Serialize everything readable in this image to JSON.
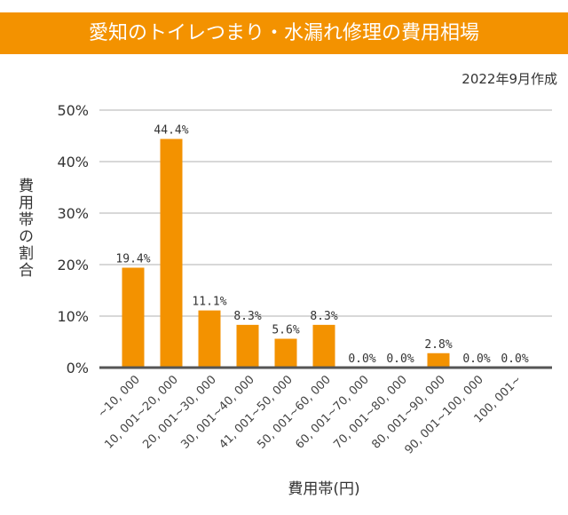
{
  "chart_data": {
    "type": "bar",
    "title": "愛知のトイレつまり・水漏れ修理の費用相場",
    "subtitle": "2022年9月作成",
    "xlabel": "費用帯(円)",
    "ylabel": "費用帯の割合",
    "categories": [
      "~10,000",
      "10,001~20,000",
      "20,001~30,000",
      "30,001~40,000",
      "41,001~50,000",
      "50,001~60,000",
      "60,001~70,000",
      "70,001~80,000",
      "80,001~90,000",
      "90,001~100,000",
      "100,001~"
    ],
    "values": [
      19.4,
      44.4,
      11.1,
      8.3,
      5.6,
      8.3,
      0.0,
      0.0,
      2.8,
      0.0,
      0.0
    ],
    "data_labels": [
      "19.4%",
      "44.4%",
      "11.1%",
      "8.3%",
      "5.6%",
      "8.3%",
      "0.0%",
      "0.0%",
      "2.8%",
      "0.0%",
      "0.0%"
    ],
    "yticks": [
      0,
      10,
      20,
      30,
      40,
      50
    ],
    "ytick_labels": [
      "0%",
      "10%",
      "20%",
      "30%",
      "40%",
      "50%"
    ],
    "ylim": [
      0,
      50
    ],
    "grid": true,
    "legend": "none",
    "colors": {
      "bar": "#F39200",
      "header": "#F39200",
      "grid": "#cccccc",
      "axis": "#555555"
    }
  }
}
